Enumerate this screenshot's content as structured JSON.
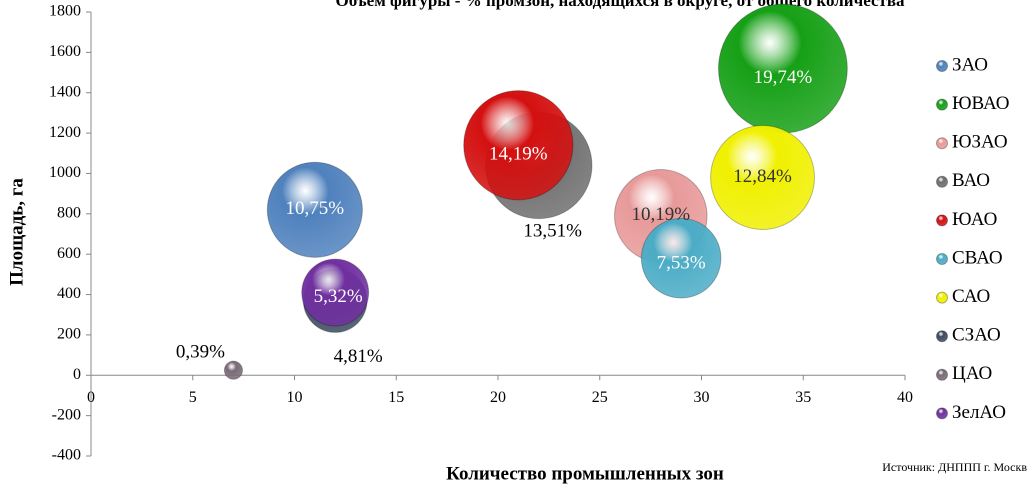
{
  "chart_data": {
    "type": "bubble",
    "title": "Объем фигуры - % промзон, находящихся в округе, от общего количества",
    "xlabel": "Количество промышленных зон",
    "ylabel": "Площадь, га",
    "source": "Источник: ДНППП г. Москв",
    "xlim": [
      0,
      40
    ],
    "xticks": [
      0,
      5,
      10,
      15,
      20,
      25,
      30,
      35,
      40
    ],
    "ylim": [
      -400,
      1800
    ],
    "yticks": [
      -400,
      -200,
      0,
      200,
      400,
      600,
      800,
      1000,
      1200,
      1400,
      1600,
      1800
    ],
    "legend": "right",
    "series": [
      {
        "name": "ЗАО",
        "color": "#4f81bd",
        "x": [
          11
        ],
        "values": [
          820
        ],
        "sizes": [
          10.75
        ],
        "value_labels": [
          "10,75%"
        ]
      },
      {
        "name": "ЮВАО",
        "color": "#16a016",
        "x": [
          34
        ],
        "values": [
          1520
        ],
        "sizes": [
          19.74
        ],
        "value_labels": [
          "19,74%"
        ]
      },
      {
        "name": "ЮЗАО",
        "color": "#e89a9a",
        "x": [
          28
        ],
        "values": [
          790
        ],
        "sizes": [
          10.19
        ],
        "value_labels": [
          "10,19%"
        ]
      },
      {
        "name": "ВАО",
        "color": "#6e6e6e",
        "x": [
          22
        ],
        "values": [
          1040
        ],
        "sizes": [
          13.51
        ],
        "value_labels": [
          "13,51%"
        ]
      },
      {
        "name": "ЮАО",
        "color": "#d41010",
        "x": [
          21
        ],
        "values": [
          1140
        ],
        "sizes": [
          14.19
        ],
        "value_labels": [
          "14,19%"
        ]
      },
      {
        "name": "СВАО",
        "color": "#4bacc6",
        "x": [
          29
        ],
        "values": [
          580
        ],
        "sizes": [
          7.53
        ],
        "value_labels": [
          "7,53%"
        ]
      },
      {
        "name": "САО",
        "color": "#f0f000",
        "x": [
          33
        ],
        "values": [
          980
        ],
        "sizes": [
          12.84
        ],
        "value_labels": [
          "12,84%"
        ]
      },
      {
        "name": "СЗАО",
        "color": "#3b4a5e",
        "x": [
          12
        ],
        "values": [
          370
        ],
        "sizes": [
          4.81
        ],
        "value_labels": [
          "4,81%"
        ]
      },
      {
        "name": "ЦАО",
        "color": "#7a6a78",
        "x": [
          7
        ],
        "values": [
          25
        ],
        "sizes": [
          0.39
        ],
        "value_labels": [
          "0,39%"
        ]
      },
      {
        "name": "ЗелАО",
        "color": "#7030a0",
        "x": [
          12
        ],
        "values": [
          410
        ],
        "sizes": [
          5.32
        ],
        "value_labels": [
          "5,32%"
        ]
      }
    ]
  }
}
